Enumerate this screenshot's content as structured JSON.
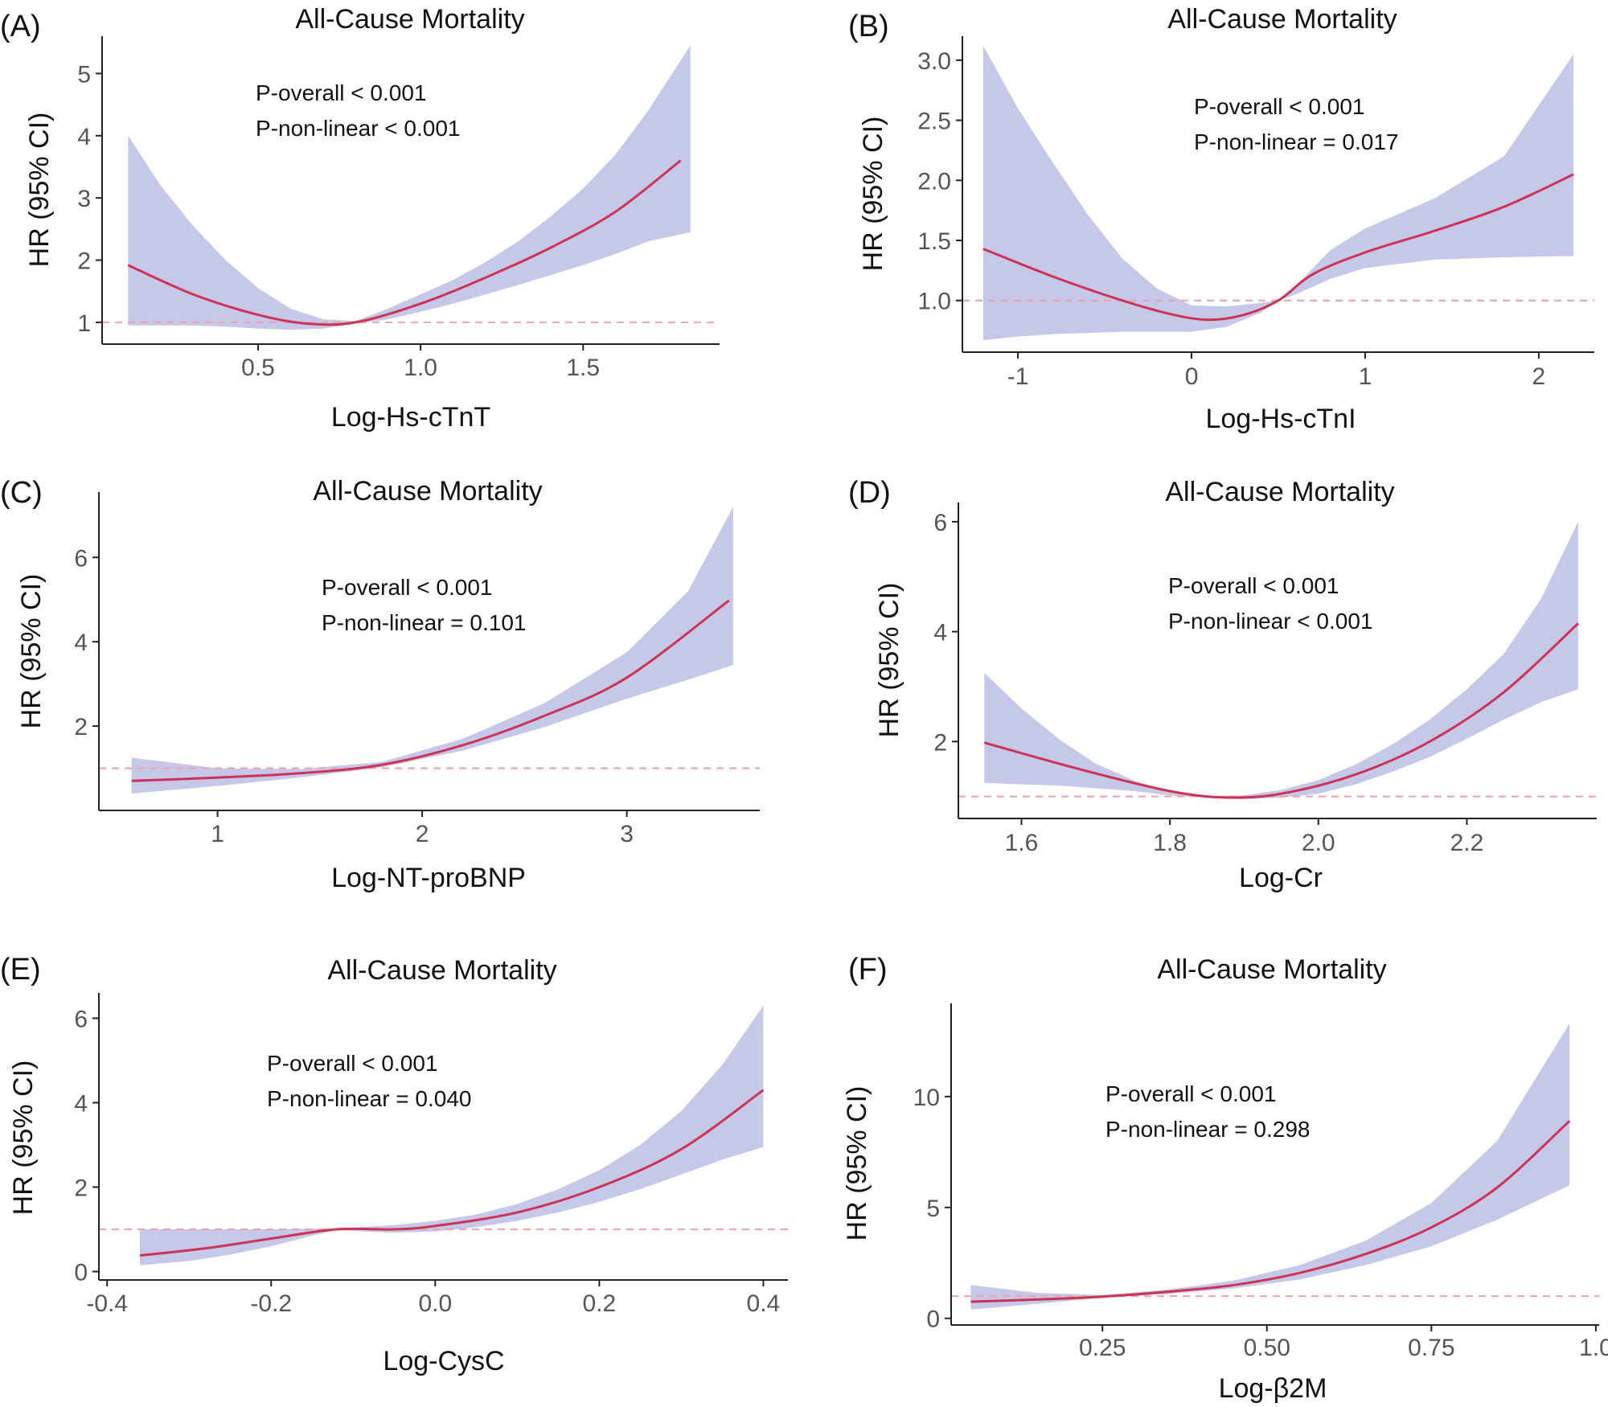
{
  "chart_data": [
    {
      "panel": "(A)",
      "type": "line",
      "title": "All-Cause Mortality",
      "xlabel": "Log-Hs-cTnT",
      "ylabel": "HR (95% CI)",
      "xlim": [
        0.02,
        1.92
      ],
      "ylim": [
        0.65,
        5.6
      ],
      "xticks": [
        0.5,
        1.0,
        1.5
      ],
      "xtick_labels": [
        "0.5",
        "1.0",
        "1.5"
      ],
      "yticks": [
        1,
        2,
        3,
        4,
        5
      ],
      "ytick_labels": [
        "1",
        "2",
        "3",
        "4",
        "5"
      ],
      "reference_line": 1,
      "annotations": [
        "P-overall < 0.001",
        "P-non-linear < 0.001"
      ],
      "series": [
        {
          "name": "HR",
          "color": "#cc3355",
          "x": [
            0.1,
            0.3,
            0.5,
            0.65,
            0.8,
            1.0,
            1.2,
            1.4,
            1.6,
            1.8
          ],
          "y": [
            1.92,
            1.45,
            1.12,
            0.98,
            1.0,
            1.3,
            1.72,
            2.2,
            2.78,
            3.6
          ]
        },
        {
          "name": "95% CI upper",
          "color": "#c5c8e8",
          "x": [
            0.1,
            0.2,
            0.3,
            0.4,
            0.5,
            0.6,
            0.7,
            0.8,
            0.9,
            1.0,
            1.1,
            1.2,
            1.3,
            1.4,
            1.5,
            1.6,
            1.7,
            1.83
          ],
          "y": [
            4.0,
            3.2,
            2.55,
            2.0,
            1.55,
            1.22,
            1.05,
            1.02,
            1.22,
            1.45,
            1.68,
            1.97,
            2.3,
            2.7,
            3.15,
            3.7,
            4.4,
            5.45
          ]
        },
        {
          "name": "95% CI lower",
          "color": "#c5c8e8",
          "x": [
            0.1,
            0.2,
            0.3,
            0.4,
            0.5,
            0.6,
            0.7,
            0.8,
            0.9,
            1.0,
            1.1,
            1.2,
            1.3,
            1.4,
            1.5,
            1.6,
            1.7,
            1.83
          ],
          "y": [
            0.95,
            0.95,
            0.95,
            0.93,
            0.9,
            0.88,
            0.9,
            0.98,
            1.05,
            1.17,
            1.3,
            1.45,
            1.6,
            1.76,
            1.92,
            2.1,
            2.3,
            2.45
          ]
        }
      ]
    },
    {
      "panel": "(B)",
      "type": "line",
      "title": "All-Cause Mortality",
      "xlabel": "Log-Hs-cTnI",
      "ylabel": "HR (95% CI)",
      "xlim": [
        -1.32,
        2.32
      ],
      "ylim": [
        0.57,
        3.2
      ],
      "xticks": [
        -1,
        0,
        1,
        2
      ],
      "xtick_labels": [
        "-1",
        "0",
        "1",
        "2"
      ],
      "yticks": [
        1.0,
        1.5,
        2.0,
        2.5,
        3.0
      ],
      "ytick_labels": [
        "1.0",
        "1.5",
        "2.0",
        "2.5",
        "3.0"
      ],
      "reference_line": 1,
      "annotations": [
        "P-overall < 0.001",
        "P-non-linear = 0.017"
      ],
      "series": [
        {
          "name": "HR",
          "color": "#cc3355",
          "x": [
            -1.2,
            -0.8,
            -0.4,
            -0.1,
            0.1,
            0.3,
            0.5,
            0.7,
            1.0,
            1.4,
            1.8,
            2.2
          ],
          "y": [
            1.43,
            1.2,
            1.0,
            0.88,
            0.84,
            0.88,
            1.0,
            1.22,
            1.4,
            1.58,
            1.78,
            2.05
          ]
        },
        {
          "name": "95% CI upper",
          "color": "#c5c8e8",
          "x": [
            -1.2,
            -1.0,
            -0.8,
            -0.6,
            -0.4,
            -0.2,
            0.0,
            0.2,
            0.4,
            0.5,
            0.6,
            0.8,
            1.0,
            1.4,
            1.8,
            2.2
          ],
          "y": [
            3.12,
            2.6,
            2.15,
            1.72,
            1.35,
            1.1,
            0.96,
            0.95,
            0.98,
            1.0,
            1.12,
            1.42,
            1.6,
            1.85,
            2.2,
            3.05
          ]
        },
        {
          "name": "95% CI lower",
          "color": "#c5c8e8",
          "x": [
            -1.2,
            -1.0,
            -0.8,
            -0.6,
            -0.4,
            -0.2,
            0.0,
            0.2,
            0.4,
            0.5,
            0.6,
            0.8,
            1.0,
            1.4,
            1.8,
            2.2
          ],
          "y": [
            0.67,
            0.7,
            0.72,
            0.73,
            0.74,
            0.74,
            0.74,
            0.78,
            0.9,
            1.0,
            1.05,
            1.18,
            1.27,
            1.34,
            1.36,
            1.37
          ]
        }
      ]
    },
    {
      "panel": "(C)",
      "type": "line",
      "title": "All-Cause Mortality",
      "xlabel": "Log-NT-proBNP",
      "ylabel": "HR (95% CI)",
      "xlim": [
        0.42,
        3.65
      ],
      "ylim": [
        0.0,
        7.55
      ],
      "xticks": [
        1,
        2,
        3
      ],
      "xtick_labels": [
        "1",
        "2",
        "3"
      ],
      "yticks": [
        2,
        4,
        6
      ],
      "ytick_labels": [
        "2",
        "4",
        "6"
      ],
      "reference_line": 1,
      "annotations": [
        "P-overall < 0.001",
        "P-non-linear = 0.101"
      ],
      "series": [
        {
          "name": "HR",
          "color": "#cc3355",
          "x": [
            0.58,
            1.0,
            1.4,
            1.8,
            2.2,
            2.6,
            3.0,
            3.5
          ],
          "y": [
            0.7,
            0.78,
            0.88,
            1.08,
            1.55,
            2.25,
            3.15,
            4.98
          ]
        },
        {
          "name": "95% CI upper",
          "color": "#c5c8e8",
          "x": [
            0.58,
            1.0,
            1.4,
            1.8,
            2.2,
            2.6,
            3.0,
            3.3,
            3.52
          ],
          "y": [
            1.25,
            1.0,
            0.98,
            1.15,
            1.7,
            2.55,
            3.75,
            5.2,
            7.2
          ]
        },
        {
          "name": "95% CI lower",
          "color": "#c5c8e8",
          "x": [
            0.58,
            1.0,
            1.4,
            1.8,
            2.2,
            2.6,
            3.0,
            3.3,
            3.52
          ],
          "y": [
            0.4,
            0.58,
            0.78,
            1.02,
            1.42,
            1.98,
            2.65,
            3.1,
            3.45
          ]
        }
      ]
    },
    {
      "panel": "(D)",
      "type": "line",
      "title": "All-Cause Mortality",
      "xlabel": "Log-Cr",
      "ylabel": "HR (95% CI)",
      "xlim": [
        1.515,
        2.375
      ],
      "ylim": [
        0.6,
        6.35
      ],
      "xticks": [
        1.6,
        1.8,
        2.0,
        2.2
      ],
      "xtick_labels": [
        "1.6",
        "1.8",
        "2.0",
        "2.2"
      ],
      "yticks": [
        2,
        4,
        6
      ],
      "ytick_labels": [
        "2",
        "4",
        "6"
      ],
      "reference_line": 1,
      "annotations": [
        "P-overall < 0.001",
        "P-non-linear < 0.001"
      ],
      "series": [
        {
          "name": "HR",
          "color": "#cc3355",
          "x": [
            1.55,
            1.65,
            1.75,
            1.82,
            1.88,
            1.95,
            2.05,
            2.15,
            2.25,
            2.35
          ],
          "y": [
            1.98,
            1.6,
            1.25,
            1.05,
            0.98,
            1.05,
            1.4,
            2.0,
            2.9,
            4.15
          ]
        },
        {
          "name": "95% CI upper",
          "color": "#c5c8e8",
          "x": [
            1.55,
            1.6,
            1.65,
            1.7,
            1.75,
            1.8,
            1.85,
            1.9,
            1.95,
            2.0,
            2.05,
            2.1,
            2.15,
            2.2,
            2.25,
            2.3,
            2.35
          ],
          "y": [
            3.25,
            2.6,
            2.05,
            1.6,
            1.3,
            1.08,
            1.0,
            1.02,
            1.12,
            1.3,
            1.58,
            1.95,
            2.4,
            2.95,
            3.6,
            4.6,
            6.0
          ]
        },
        {
          "name": "95% CI lower",
          "color": "#c5c8e8",
          "x": [
            1.55,
            1.6,
            1.65,
            1.7,
            1.75,
            1.8,
            1.85,
            1.9,
            1.95,
            2.0,
            2.05,
            2.1,
            2.15,
            2.2,
            2.25,
            2.3,
            2.35
          ],
          "y": [
            1.25,
            1.22,
            1.2,
            1.15,
            1.1,
            1.02,
            0.97,
            0.95,
            0.98,
            1.05,
            1.22,
            1.45,
            1.72,
            2.05,
            2.4,
            2.72,
            2.95
          ]
        }
      ]
    },
    {
      "panel": "(E)",
      "type": "line",
      "title": "All-Cause Mortality",
      "xlabel": "Log-CysC",
      "ylabel": "HR (95% CI)",
      "xlim": [
        -0.41,
        0.43
      ],
      "ylim": [
        -0.2,
        6.6
      ],
      "xticks": [
        -0.4,
        -0.2,
        0.0,
        0.2,
        0.4
      ],
      "xtick_labels": [
        "-0.4",
        "-0.2",
        "0.0",
        "0.2",
        "0.4"
      ],
      "yticks": [
        0,
        2,
        4,
        6
      ],
      "ytick_labels": [
        "0",
        "2",
        "4",
        "6"
      ],
      "reference_line": 1,
      "annotations": [
        "P-overall < 0.001",
        "P-non-linear = 0.040"
      ],
      "series": [
        {
          "name": "HR",
          "color": "#cc3355",
          "x": [
            -0.36,
            -0.28,
            -0.2,
            -0.12,
            -0.05,
            0.0,
            0.1,
            0.2,
            0.3,
            0.4
          ],
          "y": [
            0.38,
            0.55,
            0.78,
            1.0,
            1.0,
            1.08,
            1.4,
            2.0,
            2.9,
            4.3
          ]
        },
        {
          "name": "95% CI upper",
          "color": "#c5c8e8",
          "x": [
            -0.36,
            -0.3,
            -0.25,
            -0.2,
            -0.15,
            -0.12,
            -0.05,
            0.0,
            0.05,
            0.1,
            0.15,
            0.2,
            0.25,
            0.3,
            0.35,
            0.4
          ],
          "y": [
            1.0,
            1.0,
            1.0,
            1.0,
            1.02,
            1.02,
            1.1,
            1.2,
            1.35,
            1.6,
            1.95,
            2.4,
            3.0,
            3.8,
            4.9,
            6.3
          ]
        },
        {
          "name": "95% CI lower",
          "color": "#c5c8e8",
          "x": [
            -0.36,
            -0.3,
            -0.25,
            -0.2,
            -0.15,
            -0.12,
            -0.05,
            0.0,
            0.05,
            0.1,
            0.15,
            0.2,
            0.25,
            0.3,
            0.35,
            0.4
          ],
          "y": [
            0.15,
            0.25,
            0.4,
            0.6,
            0.85,
            0.98,
            0.92,
            0.95,
            1.05,
            1.2,
            1.4,
            1.65,
            1.95,
            2.3,
            2.65,
            2.95
          ]
        }
      ]
    },
    {
      "panel": "(F)",
      "type": "line",
      "title": "All-Cause Mortality",
      "xlabel": "Log-β2M",
      "ylabel": "HR (95% CI)",
      "xlim": [
        0.02,
        1.005
      ],
      "ylim": [
        -0.3,
        14.2
      ],
      "xticks": [
        0.25,
        0.5,
        0.75,
        1.0
      ],
      "xtick_labels": [
        "0.25",
        "0.50",
        "0.75",
        "1.0"
      ],
      "yticks": [
        0,
        5,
        10
      ],
      "ytick_labels": [
        "0",
        "5",
        "10"
      ],
      "reference_line": 1,
      "annotations": [
        "P-overall < 0.001",
        "P-non-linear = 0.298"
      ],
      "series": [
        {
          "name": "HR",
          "color": "#cc3355",
          "x": [
            0.05,
            0.15,
            0.25,
            0.35,
            0.45,
            0.55,
            0.65,
            0.75,
            0.85,
            0.96
          ],
          "y": [
            0.75,
            0.85,
            0.98,
            1.2,
            1.5,
            2.05,
            2.9,
            4.1,
            5.9,
            8.9
          ]
        },
        {
          "name": "95% CI upper",
          "color": "#c5c8e8",
          "x": [
            0.05,
            0.15,
            0.25,
            0.35,
            0.45,
            0.55,
            0.65,
            0.75,
            0.85,
            0.96
          ],
          "y": [
            1.5,
            1.15,
            1.05,
            1.3,
            1.7,
            2.4,
            3.5,
            5.2,
            8.0,
            13.3
          ]
        },
        {
          "name": "95% CI lower",
          "color": "#c5c8e8",
          "x": [
            0.05,
            0.15,
            0.25,
            0.35,
            0.45,
            0.55,
            0.65,
            0.75,
            0.85,
            0.96
          ],
          "y": [
            0.4,
            0.65,
            0.92,
            1.1,
            1.35,
            1.75,
            2.4,
            3.25,
            4.45,
            6.0
          ]
        }
      ]
    }
  ]
}
